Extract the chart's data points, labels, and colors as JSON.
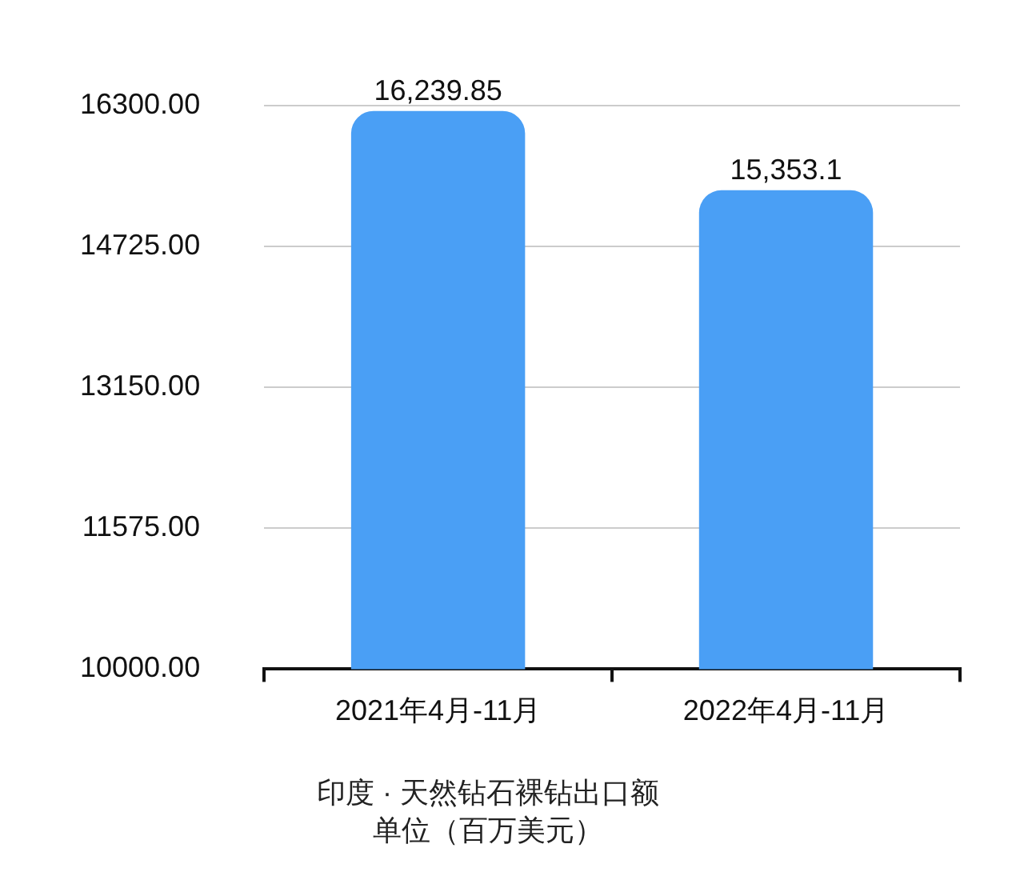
{
  "chart_data": {
    "type": "bar",
    "title": "印度 · 天然钻石裸钻出口额",
    "subtitle": "单位（百万美元）",
    "categories": [
      "2021年4月-11月",
      "2022年4月-11月"
    ],
    "values": [
      16239.85,
      15353.1
    ],
    "value_labels": [
      "16,239.85",
      "15,353.1"
    ],
    "color": "#4a9ff5",
    "ylim": [
      10000,
      16300
    ],
    "yticks": [
      {
        "value": 10000,
        "label": "10000.00"
      },
      {
        "value": 11575,
        "label": "11575.00"
      },
      {
        "value": 13150,
        "label": "13150.00"
      },
      {
        "value": 14725,
        "label": "14725.00"
      },
      {
        "value": 16300,
        "label": "16300.00"
      }
    ],
    "grid": "y",
    "legend": false
  }
}
